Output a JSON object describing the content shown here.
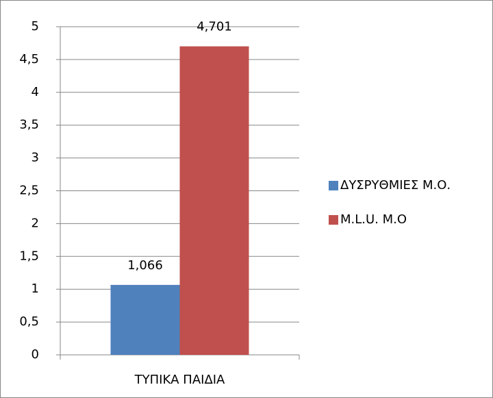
{
  "chart_data": {
    "type": "bar",
    "categories": [
      "ΤΥΠΙΚΑ ΠΑΙΔΙΑ"
    ],
    "series": [
      {
        "name": "ΔΥΣΡΥΘΜΙΕΣ Μ.Ο.",
        "color": "#4f81bd",
        "values": [
          1.066
        ],
        "value_labels": [
          "1,066"
        ]
      },
      {
        "name": "M.L.U. Μ.Ο",
        "color": "#c0504d",
        "values": [
          4.701
        ],
        "value_labels": [
          "4,701"
        ]
      }
    ],
    "ylim": [
      0,
      5
    ],
    "yticks": [
      0,
      {
        "value": 0.5,
        "label": "0,5"
      },
      1,
      {
        "value": 1.5,
        "label": "1,5"
      },
      2,
      {
        "value": 2.5,
        "label": "2,5"
      },
      3,
      {
        "value": 3.5,
        "label": "3,5"
      },
      4,
      {
        "value": 4.5,
        "label": "4,5"
      },
      5
    ],
    "grid": true,
    "legend": "right"
  }
}
